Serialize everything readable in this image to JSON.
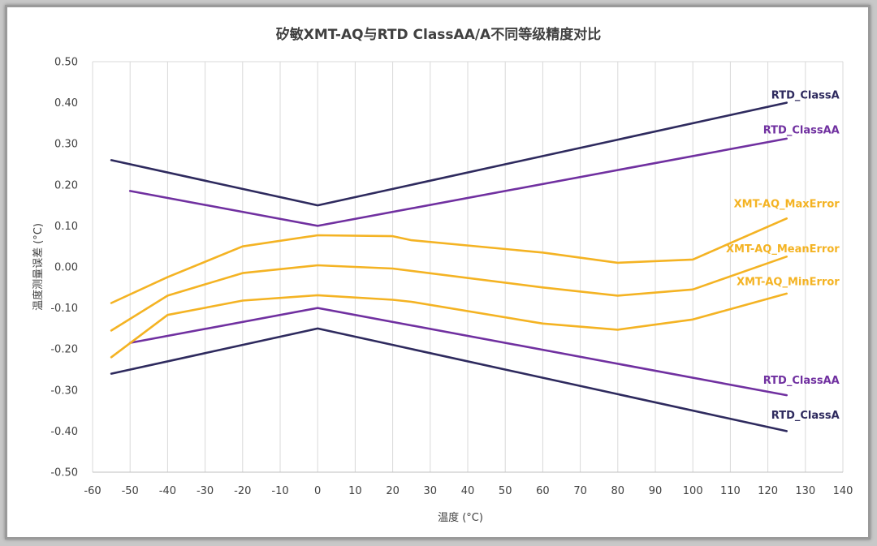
{
  "chart_data": {
    "type": "line",
    "title": "矽敏XMT-AQ与RTD ClassAA/A不同等级精度对比",
    "xlabel": "温度 (°C)",
    "ylabel": "温度测量误差 (°C)",
    "xlim": [
      -60,
      140
    ],
    "ylim": [
      -0.5,
      0.5
    ],
    "x_ticks": [
      "-60",
      "-50",
      "-40",
      "-30",
      "-20",
      "-10",
      "0",
      "10",
      "20",
      "30",
      "40",
      "50",
      "60",
      "70",
      "80",
      "90",
      "100",
      "110",
      "120",
      "130",
      "140"
    ],
    "y_ticks": [
      "-0.50",
      "-0.40",
      "-0.30",
      "-0.20",
      "-0.10",
      "0.00",
      "0.10",
      "0.20",
      "0.30",
      "0.40",
      "0.50"
    ],
    "grid": "vertical",
    "series": [
      {
        "name": "RTD_ClassA",
        "color": "#2e2a5e",
        "points": [
          [
            -55,
            0.26
          ],
          [
            0,
            0.15
          ],
          [
            125,
            0.4
          ]
        ]
      },
      {
        "name": "RTD_ClassA",
        "color": "#2e2a5e",
        "points": [
          [
            -55,
            -0.26
          ],
          [
            0,
            -0.15
          ],
          [
            125,
            -0.4
          ]
        ]
      },
      {
        "name": "RTD_ClassAA",
        "color": "#7030a0",
        "points": [
          [
            -50,
            0.185
          ],
          [
            0,
            0.1
          ],
          [
            125,
            0.3125
          ]
        ]
      },
      {
        "name": "RTD_ClassAA",
        "color": "#7030a0",
        "points": [
          [
            -50,
            -0.185
          ],
          [
            0,
            -0.1
          ],
          [
            125,
            -0.3125
          ]
        ]
      },
      {
        "name": "XMT-AQ_MaxError",
        "color": "#f4b323",
        "points": [
          [
            -55,
            -0.088
          ],
          [
            -40,
            -0.025
          ],
          [
            -20,
            0.05
          ],
          [
            0,
            0.077
          ],
          [
            20,
            0.075
          ],
          [
            25,
            0.065
          ],
          [
            60,
            0.035
          ],
          [
            80,
            0.01
          ],
          [
            100,
            0.018
          ],
          [
            125,
            0.118
          ]
        ]
      },
      {
        "name": "XMT-AQ_MeanError",
        "color": "#f4b323",
        "points": [
          [
            -55,
            -0.155
          ],
          [
            -40,
            -0.07
          ],
          [
            -20,
            -0.015
          ],
          [
            0,
            0.004
          ],
          [
            20,
            -0.004
          ],
          [
            60,
            -0.05
          ],
          [
            80,
            -0.07
          ],
          [
            100,
            -0.055
          ],
          [
            125,
            0.025
          ]
        ]
      },
      {
        "name": "XMT-AQ_MinError",
        "color": "#f4b323",
        "points": [
          [
            -55,
            -0.22
          ],
          [
            -40,
            -0.117
          ],
          [
            -20,
            -0.082
          ],
          [
            0,
            -0.069
          ],
          [
            20,
            -0.08
          ],
          [
            25,
            -0.085
          ],
          [
            60,
            -0.138
          ],
          [
            80,
            -0.153
          ],
          [
            100,
            -0.128
          ],
          [
            125,
            -0.065
          ]
        ]
      }
    ],
    "labels": [
      {
        "text": "RTD_ClassA",
        "color": "#2e2a5e",
        "x": 125,
        "y": 0.42
      },
      {
        "text": "RTD_ClassAA",
        "color": "#7030a0",
        "x": 125,
        "y": 0.335
      },
      {
        "text": "XMT-AQ_MaxError",
        "color": "#f4b323",
        "x": 125,
        "y": 0.155
      },
      {
        "text": "XMT-AQ_MeanError",
        "color": "#f4b323",
        "x": 125,
        "y": 0.045
      },
      {
        "text": "XMT-AQ_MinError",
        "color": "#f4b323",
        "x": 125,
        "y": -0.035
      },
      {
        "text": "RTD_ClassAA",
        "color": "#7030a0",
        "x": 125,
        "y": -0.275
      },
      {
        "text": "RTD_ClassA",
        "color": "#2e2a5e",
        "x": 125,
        "y": -0.36
      }
    ]
  }
}
